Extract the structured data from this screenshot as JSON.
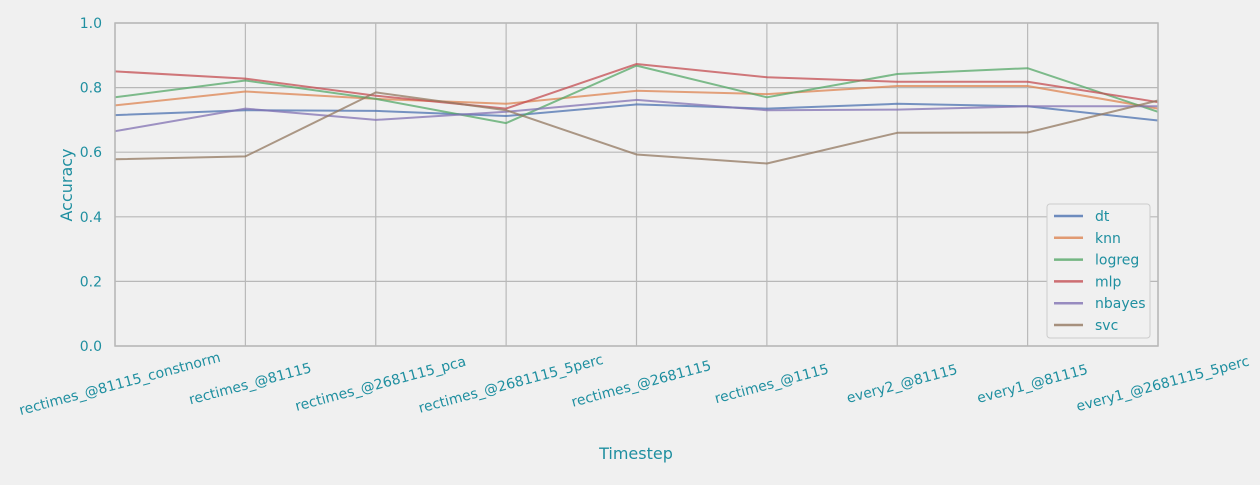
{
  "chart_data": {
    "type": "line",
    "xlabel": "Timestep",
    "ylabel": "Accuracy",
    "ylim": [
      0.0,
      1.0
    ],
    "yticks": [
      "0.0",
      "0.2",
      "0.4",
      "0.6",
      "0.8",
      "1.0"
    ],
    "categories": [
      "rectimes_@81115_constnorm",
      "rectimes_@81115",
      "rectimes_@2681115_pca",
      "rectimes_@2681115_5perc",
      "rectimes_@2681115",
      "rectimes_@1115",
      "every2_@81115",
      "every1_@81115",
      "every1_@2681115_5perc"
    ],
    "grid": true,
    "legend_position": "bottom-right",
    "series": [
      {
        "name": "dt",
        "color": "#4c72b0",
        "values": [
          0.715,
          0.73,
          0.728,
          0.712,
          0.748,
          0.735,
          0.75,
          0.742,
          0.698
        ]
      },
      {
        "name": "knn",
        "color": "#dd8452",
        "values": [
          0.745,
          0.788,
          0.765,
          0.75,
          0.79,
          0.78,
          0.805,
          0.805,
          0.735
        ]
      },
      {
        "name": "logreg",
        "color": "#55a868",
        "values": [
          0.77,
          0.822,
          0.765,
          0.69,
          0.868,
          0.77,
          0.842,
          0.86,
          0.725
        ]
      },
      {
        "name": "mlp",
        "color": "#c44e52",
        "values": [
          0.85,
          0.828,
          0.775,
          0.735,
          0.873,
          0.832,
          0.818,
          0.818,
          0.755
        ]
      },
      {
        "name": "nbayes",
        "color": "#8172b3",
        "values": [
          0.665,
          0.735,
          0.7,
          0.725,
          0.762,
          0.73,
          0.732,
          0.742,
          0.742
        ]
      },
      {
        "name": "svc",
        "color": "#937860",
        "values": [
          0.578,
          0.587,
          0.785,
          0.73,
          0.593,
          0.565,
          0.66,
          0.661,
          0.76
        ]
      }
    ]
  }
}
